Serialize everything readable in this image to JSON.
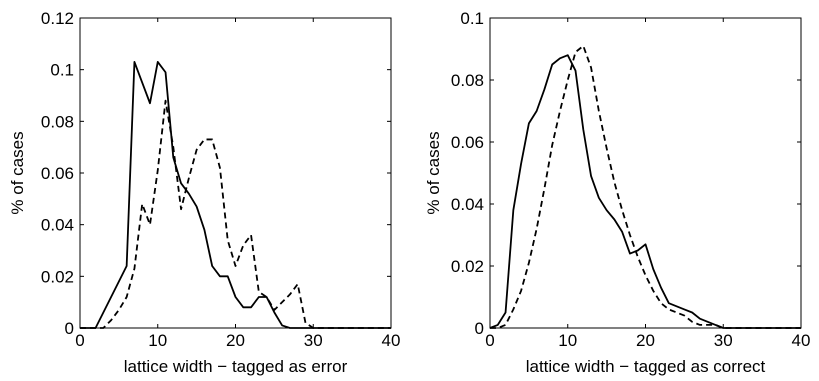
{
  "chart_data": [
    {
      "type": "line",
      "title": "",
      "xlabel": "lattice width − tagged as error",
      "ylabel": "% of cases",
      "xlim": [
        0,
        40
      ],
      "ylim": [
        0,
        0.12
      ],
      "xticks": [
        0,
        10,
        20,
        30,
        40
      ],
      "yticks": [
        0,
        0.02,
        0.04,
        0.06,
        0.08,
        0.1,
        0.12
      ],
      "xtick_labels": [
        "0",
        "10",
        "20",
        "30",
        "40"
      ],
      "ytick_labels": [
        "0",
        "0.02",
        "0.04",
        "0.06",
        "0.08",
        "0.1",
        "0.12"
      ],
      "grid": false,
      "legend": null,
      "series": [
        {
          "style": "solid",
          "x": [
            0,
            1,
            2,
            3,
            4,
            5,
            6,
            7,
            8,
            9,
            10,
            11,
            12,
            13,
            14,
            15,
            16,
            17,
            18,
            19,
            20,
            21,
            22,
            23,
            24,
            25,
            26,
            27,
            28,
            29,
            30,
            31,
            32,
            33,
            34,
            35,
            36,
            37,
            38,
            39,
            40
          ],
          "y": [
            0,
            0,
            0,
            0.006,
            0.012,
            0.018,
            0.024,
            0.103,
            0.095,
            0.087,
            0.103,
            0.099,
            0.066,
            0.056,
            0.052,
            0.047,
            0.038,
            0.024,
            0.02,
            0.02,
            0.012,
            0.008,
            0.008,
            0.012,
            0.012,
            0.006,
            0.001,
            0,
            0,
            0,
            0,
            0,
            0,
            0,
            0,
            0,
            0,
            0,
            0,
            0,
            0
          ]
        },
        {
          "style": "dashed",
          "x": [
            0,
            1,
            2,
            3,
            4,
            5,
            6,
            7,
            8,
            9,
            10,
            11,
            12,
            13,
            14,
            15,
            16,
            17,
            18,
            19,
            20,
            21,
            22,
            23,
            24,
            25,
            26,
            27,
            28,
            29,
            30,
            31,
            32,
            33,
            34,
            35,
            36,
            37,
            38,
            39,
            40
          ],
          "y": [
            0,
            0,
            0,
            0,
            0.003,
            0.007,
            0.012,
            0.023,
            0.048,
            0.04,
            0.061,
            0.088,
            0.07,
            0.046,
            0.058,
            0.069,
            0.073,
            0.073,
            0.062,
            0.034,
            0.024,
            0.032,
            0.036,
            0.014,
            0.012,
            0.007,
            0.01,
            0.013,
            0.017,
            0.002,
            0,
            0,
            0,
            0,
            0,
            0,
            0,
            0,
            0,
            0,
            0
          ]
        }
      ]
    },
    {
      "type": "line",
      "title": "",
      "xlabel": "lattice width − tagged as correct",
      "ylabel": "% of cases",
      "xlim": [
        0,
        40
      ],
      "ylim": [
        0,
        0.1
      ],
      "xticks": [
        0,
        10,
        20,
        30,
        40
      ],
      "yticks": [
        0,
        0.02,
        0.04,
        0.06,
        0.08,
        0.1
      ],
      "xtick_labels": [
        "0",
        "10",
        "20",
        "30",
        "40"
      ],
      "ytick_labels": [
        "0",
        "0.02",
        "0.04",
        "0.06",
        "0.08",
        "0.1"
      ],
      "grid": false,
      "legend": null,
      "series": [
        {
          "style": "solid",
          "x": [
            0,
            1,
            2,
            3,
            4,
            5,
            6,
            7,
            8,
            9,
            10,
            11,
            12,
            13,
            14,
            15,
            16,
            17,
            18,
            19,
            20,
            21,
            22,
            23,
            24,
            25,
            26,
            27,
            28,
            29,
            30,
            31,
            32,
            33,
            34,
            35,
            36,
            37,
            38,
            39,
            40
          ],
          "y": [
            0,
            0.001,
            0.005,
            0.038,
            0.053,
            0.066,
            0.07,
            0.077,
            0.085,
            0.087,
            0.088,
            0.083,
            0.064,
            0.049,
            0.042,
            0.038,
            0.035,
            0.031,
            0.024,
            0.025,
            0.027,
            0.019,
            0.013,
            0.008,
            0.007,
            0.006,
            0.005,
            0.003,
            0.002,
            0.001,
            0,
            0,
            0,
            0,
            0,
            0,
            0,
            0,
            0,
            0,
            0
          ]
        },
        {
          "style": "dashed",
          "x": [
            0,
            1,
            2,
            3,
            4,
            5,
            6,
            7,
            8,
            9,
            10,
            11,
            12,
            13,
            14,
            15,
            16,
            17,
            18,
            19,
            20,
            21,
            22,
            23,
            24,
            25,
            26,
            27,
            28,
            29,
            30,
            31,
            32,
            33,
            34,
            35,
            36,
            37,
            38,
            39,
            40
          ],
          "y": [
            0,
            0,
            0.001,
            0.006,
            0.012,
            0.021,
            0.032,
            0.045,
            0.059,
            0.07,
            0.08,
            0.089,
            0.091,
            0.084,
            0.07,
            0.058,
            0.047,
            0.038,
            0.03,
            0.023,
            0.017,
            0.012,
            0.008,
            0.006,
            0.005,
            0.004,
            0.002,
            0.001,
            0.001,
            0.001,
            0,
            0,
            0,
            0,
            0,
            0,
            0,
            0,
            0,
            0,
            0
          ]
        }
      ]
    }
  ]
}
